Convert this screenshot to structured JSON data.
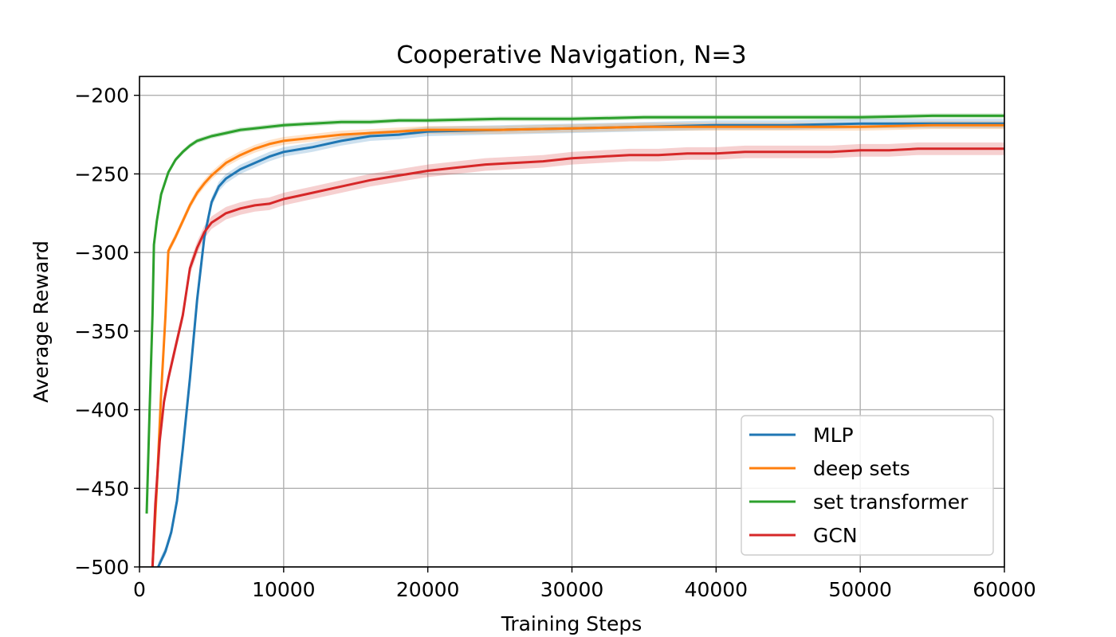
{
  "chart_data": {
    "type": "line",
    "title": "Cooperative Navigation, N=3",
    "xlabel": "Training Steps",
    "ylabel": "Average Reward",
    "xlim": [
      0,
      60000
    ],
    "ylim": [
      -500,
      -188
    ],
    "xticks": [
      0,
      10000,
      20000,
      30000,
      40000,
      50000,
      60000
    ],
    "yticks": [
      -200,
      -250,
      -300,
      -350,
      -400,
      -450,
      -500
    ],
    "xtick_labels": [
      "0",
      "10000",
      "20000",
      "30000",
      "40000",
      "50000",
      "60000"
    ],
    "ytick_labels": [
      "−200",
      "−250",
      "−300",
      "−350",
      "−400",
      "−450",
      "−500"
    ],
    "grid": true,
    "legend_position": "lower-right",
    "series": [
      {
        "name": "MLP",
        "color": "#1f77b4",
        "points": [
          [
            1300,
            -500
          ],
          [
            1800,
            -490
          ],
          [
            2200,
            -478
          ],
          [
            2600,
            -458
          ],
          [
            3000,
            -425
          ],
          [
            3500,
            -380
          ],
          [
            4000,
            -330
          ],
          [
            4500,
            -290
          ],
          [
            5000,
            -268
          ],
          [
            5500,
            -258
          ],
          [
            6000,
            -253
          ],
          [
            7000,
            -247
          ],
          [
            8000,
            -243
          ],
          [
            9000,
            -239
          ],
          [
            10000,
            -236
          ],
          [
            12000,
            -233
          ],
          [
            14000,
            -229
          ],
          [
            16000,
            -226
          ],
          [
            18000,
            -225
          ],
          [
            20000,
            -223
          ],
          [
            25000,
            -222
          ],
          [
            30000,
            -221
          ],
          [
            35000,
            -220
          ],
          [
            40000,
            -219
          ],
          [
            45000,
            -219
          ],
          [
            50000,
            -218
          ],
          [
            55000,
            -218
          ],
          [
            60000,
            -218
          ]
        ]
      },
      {
        "name": "deep sets",
        "color": "#ff7f0e",
        "points": [
          [
            900,
            -500
          ],
          [
            1200,
            -450
          ],
          [
            1500,
            -390
          ],
          [
            1800,
            -340
          ],
          [
            2000,
            -299
          ],
          [
            2500,
            -290
          ],
          [
            3000,
            -280
          ],
          [
            3500,
            -270
          ],
          [
            4000,
            -262
          ],
          [
            4500,
            -256
          ],
          [
            5000,
            -251
          ],
          [
            5500,
            -247
          ],
          [
            6000,
            -243
          ],
          [
            7000,
            -238
          ],
          [
            8000,
            -234
          ],
          [
            9000,
            -231
          ],
          [
            10000,
            -229
          ],
          [
            12000,
            -227
          ],
          [
            14000,
            -225
          ],
          [
            16000,
            -224
          ],
          [
            18000,
            -223
          ],
          [
            20000,
            -222
          ],
          [
            25000,
            -222
          ],
          [
            30000,
            -221
          ],
          [
            35000,
            -220
          ],
          [
            40000,
            -220
          ],
          [
            45000,
            -220
          ],
          [
            50000,
            -220
          ],
          [
            55000,
            -219
          ],
          [
            60000,
            -219
          ]
        ]
      },
      {
        "name": "set transformer",
        "color": "#2ca02c",
        "points": [
          [
            500,
            -466
          ],
          [
            700,
            -400
          ],
          [
            900,
            -340
          ],
          [
            1000,
            -295
          ],
          [
            1200,
            -280
          ],
          [
            1500,
            -263
          ],
          [
            2000,
            -249
          ],
          [
            2500,
            -241
          ],
          [
            3000,
            -236
          ],
          [
            3500,
            -232
          ],
          [
            4000,
            -229
          ],
          [
            5000,
            -226
          ],
          [
            6000,
            -224
          ],
          [
            7000,
            -222
          ],
          [
            8000,
            -221
          ],
          [
            10000,
            -219
          ],
          [
            12000,
            -218
          ],
          [
            14000,
            -217
          ],
          [
            16000,
            -217
          ],
          [
            18000,
            -216
          ],
          [
            20000,
            -216
          ],
          [
            25000,
            -215
          ],
          [
            30000,
            -215
          ],
          [
            35000,
            -214
          ],
          [
            40000,
            -214
          ],
          [
            45000,
            -214
          ],
          [
            50000,
            -214
          ],
          [
            55000,
            -213
          ],
          [
            60000,
            -213
          ]
        ]
      },
      {
        "name": "GCN",
        "color": "#d62728",
        "points": [
          [
            900,
            -500
          ],
          [
            1100,
            -460
          ],
          [
            1400,
            -420
          ],
          [
            1700,
            -395
          ],
          [
            2000,
            -380
          ],
          [
            2500,
            -360
          ],
          [
            3000,
            -340
          ],
          [
            3500,
            -310
          ],
          [
            4000,
            -297
          ],
          [
            4500,
            -287
          ],
          [
            5000,
            -281
          ],
          [
            5500,
            -278
          ],
          [
            6000,
            -275
          ],
          [
            7000,
            -272
          ],
          [
            8000,
            -270
          ],
          [
            9000,
            -269
          ],
          [
            10000,
            -266
          ],
          [
            11000,
            -264
          ],
          [
            12000,
            -262
          ],
          [
            14000,
            -258
          ],
          [
            16000,
            -254
          ],
          [
            18000,
            -251
          ],
          [
            20000,
            -248
          ],
          [
            22000,
            -246
          ],
          [
            24000,
            -244
          ],
          [
            26000,
            -243
          ],
          [
            28000,
            -242
          ],
          [
            30000,
            -240
          ],
          [
            32000,
            -239
          ],
          [
            34000,
            -238
          ],
          [
            36000,
            -238
          ],
          [
            38000,
            -237
          ],
          [
            40000,
            -237
          ],
          [
            42000,
            -236
          ],
          [
            44000,
            -236
          ],
          [
            46000,
            -236
          ],
          [
            48000,
            -236
          ],
          [
            50000,
            -235
          ],
          [
            52000,
            -235
          ],
          [
            54000,
            -234
          ],
          [
            56000,
            -234
          ],
          [
            58000,
            -234
          ],
          [
            60000,
            -234
          ]
        ]
      }
    ]
  }
}
